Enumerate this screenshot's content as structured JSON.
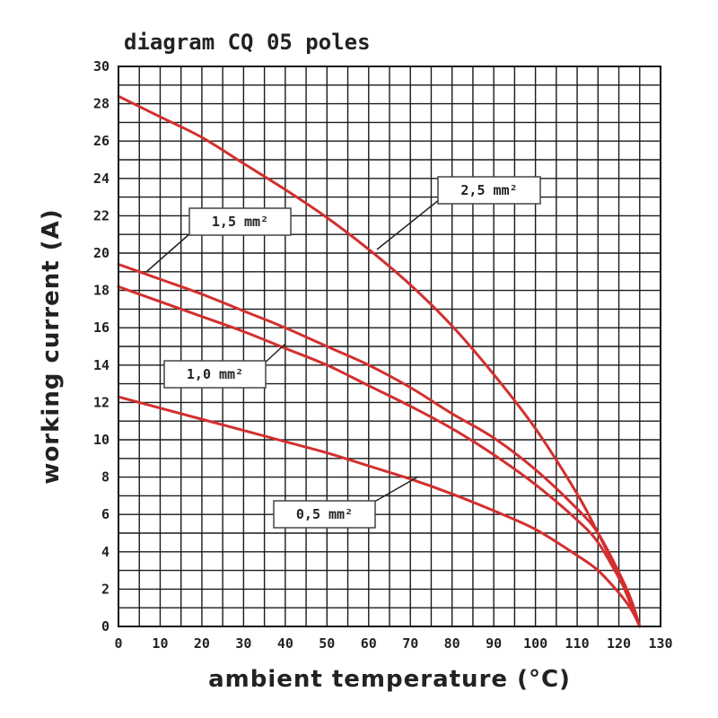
{
  "chart_data": {
    "type": "line",
    "title": "diagram CQ 05 poles",
    "xlabel": "ambient temperature (°C)",
    "ylabel": "working current (A)",
    "xlim": [
      0,
      130
    ],
    "ylim": [
      0,
      30
    ],
    "x_ticks": [
      "0",
      "10",
      "20",
      "30",
      "40",
      "50",
      "60",
      "70",
      "80",
      "90",
      "100",
      "110",
      "120",
      "130"
    ],
    "y_ticks": [
      "0",
      "2",
      "4",
      "6",
      "8",
      "10",
      "12",
      "14",
      "16",
      "18",
      "20",
      "22",
      "24",
      "26",
      "28",
      "30"
    ],
    "grid": true,
    "curve_color": "#d32f2f",
    "series": [
      {
        "name": "2,5 mm²",
        "x": [
          0,
          10,
          20,
          30,
          40,
          50,
          60,
          70,
          80,
          90,
          100,
          110,
          115,
          120,
          123,
          125
        ],
        "y": [
          28.4,
          27.3,
          26.2,
          24.8,
          23.4,
          21.9,
          20.2,
          18.3,
          16.1,
          13.5,
          10.6,
          7.1,
          5.0,
          2.7,
          1.1,
          0
        ]
      },
      {
        "name": "1,5 mm²",
        "x": [
          0,
          10,
          20,
          30,
          40,
          50,
          60,
          70,
          80,
          90,
          100,
          110,
          115,
          120,
          123,
          125
        ],
        "y": [
          19.4,
          18.6,
          17.8,
          16.9,
          16.0,
          15.0,
          14.0,
          12.8,
          11.4,
          10.1,
          8.4,
          6.3,
          5.0,
          2.9,
          1.4,
          0
        ]
      },
      {
        "name": "1,0 mm²",
        "x": [
          0,
          10,
          20,
          30,
          40,
          50,
          60,
          70,
          80,
          90,
          100,
          110,
          115,
          120,
          123,
          125
        ],
        "y": [
          18.2,
          17.4,
          16.6,
          15.8,
          14.9,
          14.0,
          12.9,
          11.8,
          10.6,
          9.2,
          7.6,
          5.7,
          4.5,
          2.6,
          1.3,
          0
        ]
      },
      {
        "name": "0,5 mm²",
        "x": [
          0,
          10,
          20,
          30,
          40,
          50,
          60,
          70,
          80,
          90,
          100,
          110,
          115,
          120,
          123,
          125
        ],
        "y": [
          12.3,
          11.7,
          11.1,
          10.5,
          9.9,
          9.3,
          8.6,
          7.9,
          7.1,
          6.2,
          5.2,
          3.8,
          3.0,
          1.8,
          0.9,
          0
        ]
      }
    ],
    "annotations": [
      {
        "text": "2,5 mm²",
        "series": "2,5 mm²"
      },
      {
        "text": "1,5 mm²",
        "series": "1,5 mm²"
      },
      {
        "text": "1,0 mm²",
        "series": "1,0 mm²"
      },
      {
        "text": "0,5 mm²",
        "series": "0,5 mm²"
      }
    ]
  }
}
